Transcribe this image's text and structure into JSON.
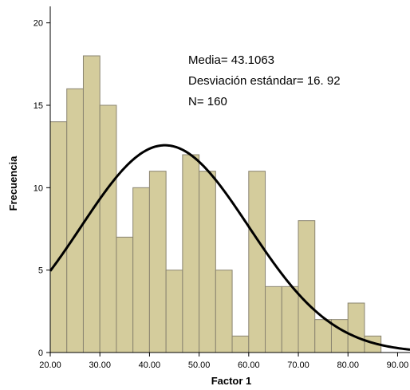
{
  "chart_data": {
    "type": "bar",
    "subtype": "histogram",
    "xlabel": "Factor 1",
    "ylabel": "Frecuencia",
    "xlim": [
      20,
      92.5
    ],
    "ylim": [
      0,
      21
    ],
    "x_ticks": [
      "20.00",
      "30.00",
      "40.00",
      "50.00",
      "60.00",
      "70.00",
      "80.00",
      "90.00"
    ],
    "y_ticks": [
      "0",
      "5",
      "10",
      "15",
      "20"
    ],
    "bin_width": 3.333,
    "bin_start": 20,
    "values": [
      14,
      16,
      18,
      15,
      7,
      10,
      11,
      5,
      12,
      11,
      5,
      1,
      11,
      4,
      4,
      8,
      2,
      2,
      3,
      1
    ],
    "bar_color": "#d4cc9c",
    "bar_edge_color": "#8a8470",
    "curve_color": "#000000",
    "normal_curve": {
      "mean": 43.1063,
      "std": 16.92,
      "n": 160
    },
    "annotations": [
      "Media= 43.1063",
      "Desviación estándar= 16. 92",
      "N= 160"
    ]
  }
}
